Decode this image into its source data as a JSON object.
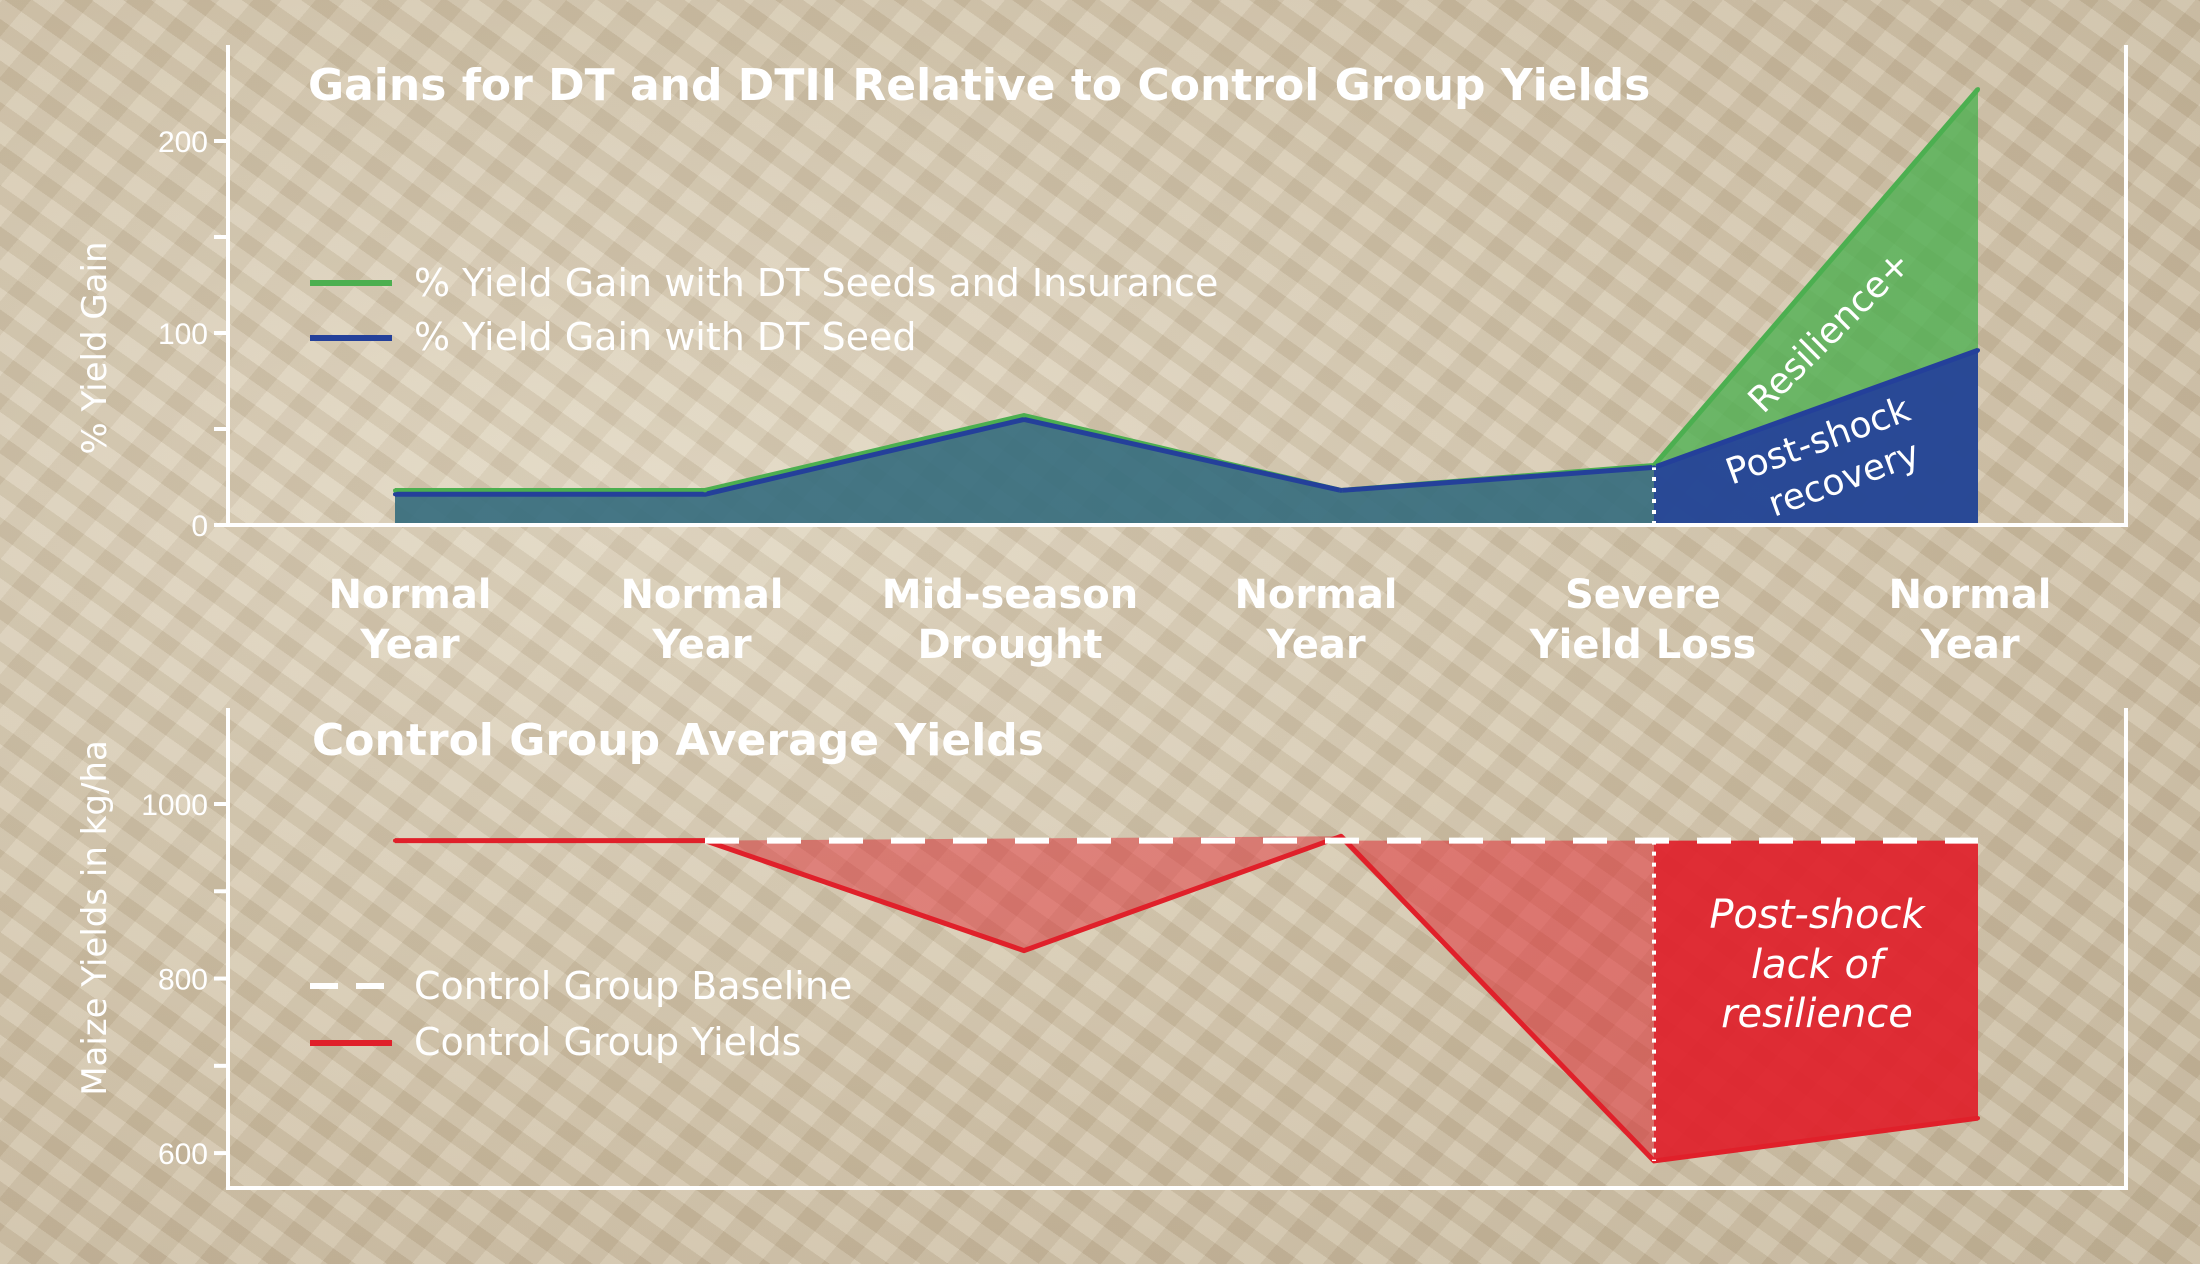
{
  "colors": {
    "dt_insurance": "#4caf50",
    "dt_seed": "#24409a",
    "control_yields": "#e0202a",
    "baseline": "#ffffff",
    "axis": "#ffffff"
  },
  "categories": [
    [
      "Normal",
      "Year"
    ],
    [
      "Normal",
      "Year"
    ],
    [
      "Mid-season",
      "Drought"
    ],
    [
      "Normal",
      "Year"
    ],
    [
      "Severe",
      "Yield Loss"
    ],
    [
      "Normal",
      "Year"
    ]
  ],
  "chart_data": [
    {
      "type": "area",
      "title": "Gains for DT and DTII Relative to Control Group Yields",
      "ylabel": "% Yield Gain",
      "ylim": [
        0,
        250
      ],
      "yticks": [
        0,
        100,
        200
      ],
      "categories": [
        "Normal Year",
        "Normal Year",
        "Mid-season Drought",
        "Normal Year",
        "Severe Yield Loss",
        "Normal Year"
      ],
      "series": [
        {
          "name": "% Yield Gain with DT Seeds and Insurance",
          "values": [
            18,
            18,
            57,
            18,
            31,
            227
          ]
        },
        {
          "name": "% Yield Gain with DT Seed",
          "values": [
            16,
            16,
            55,
            18,
            30,
            91
          ]
        }
      ],
      "legend": "upper-left",
      "annotations": [
        "Resilience+",
        "Post-shock",
        "recovery"
      ]
    },
    {
      "type": "line",
      "title": "Control Group Average Yields",
      "ylabel": "Maize Yields in kg/ha",
      "ylim": [
        560,
        1110
      ],
      "yticks": [
        600,
        800,
        1000
      ],
      "categories": [
        "Normal Year",
        "Normal Year",
        "Mid-season Drought",
        "Normal Year",
        "Severe Yield Loss",
        "Normal Year"
      ],
      "series": [
        {
          "name": "Control Group Baseline",
          "values": [
            958,
            958,
            958,
            958,
            958,
            958
          ]
        },
        {
          "name": "Control Group Yields",
          "values": [
            958,
            958,
            832,
            963,
            591,
            640
          ]
        }
      ],
      "legend": "lower-left",
      "annotations": [
        "Post-shock",
        "lack of",
        "resilience"
      ]
    }
  ]
}
